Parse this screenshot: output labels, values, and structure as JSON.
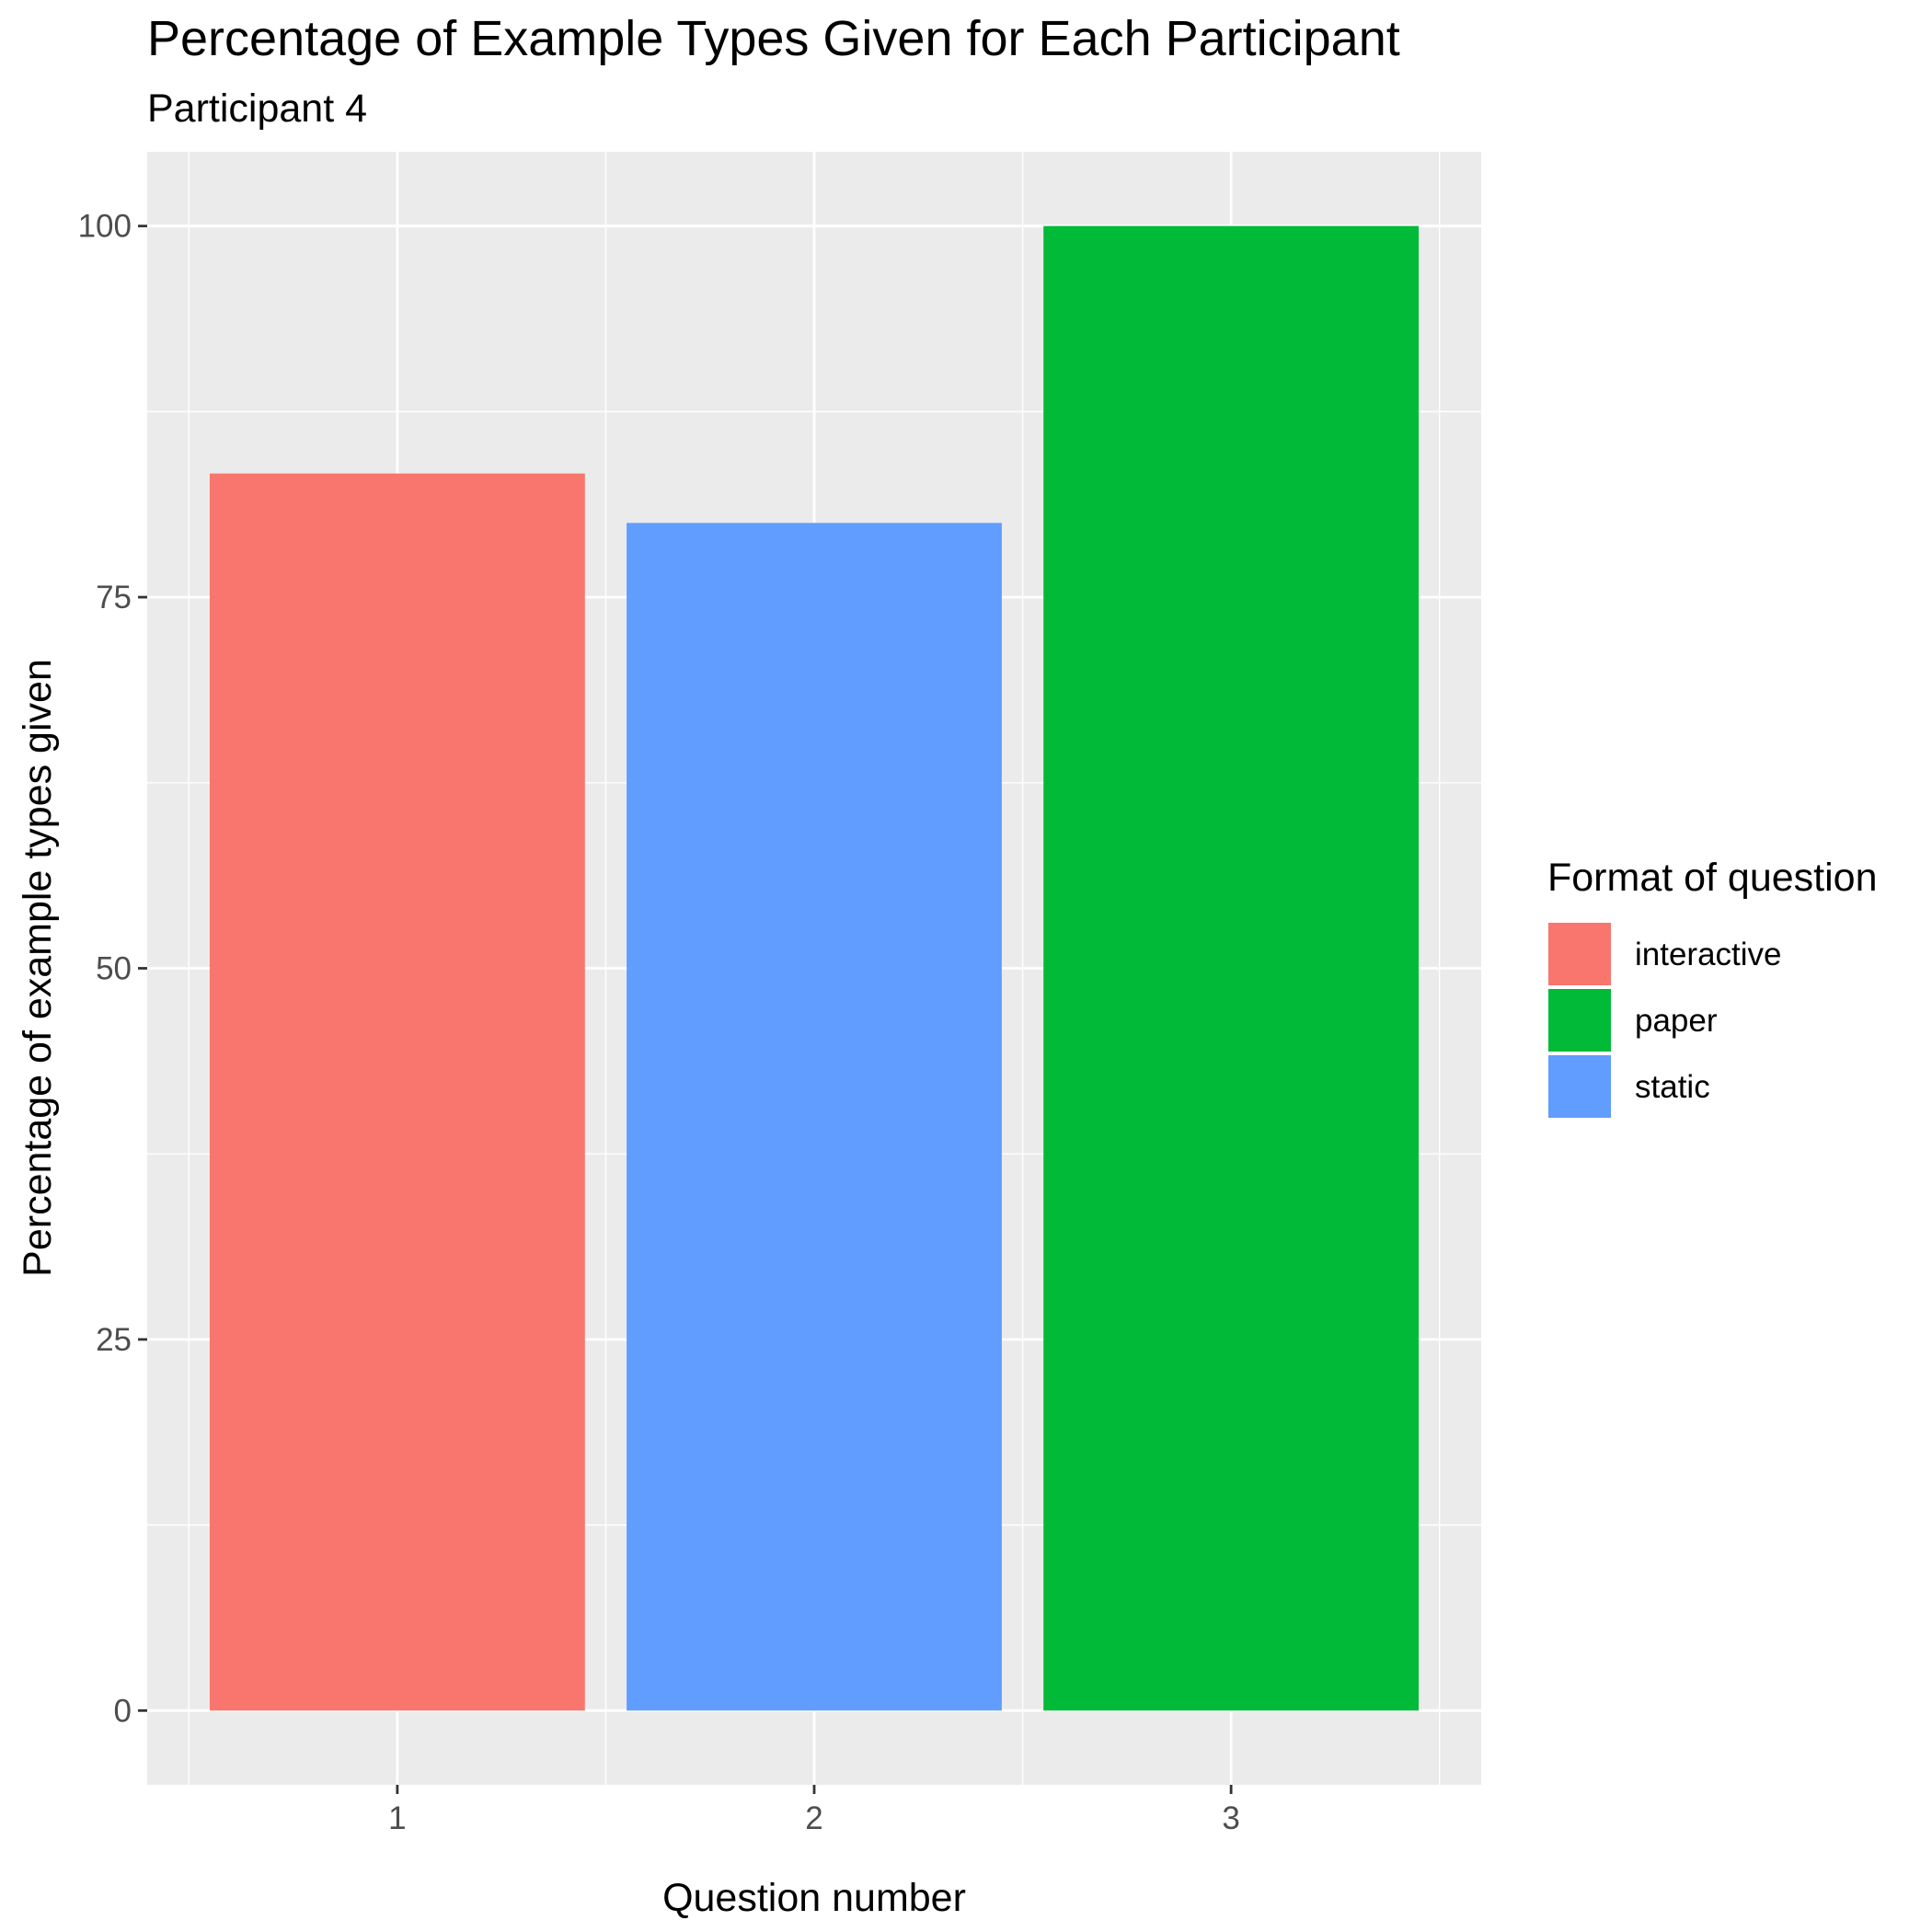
{
  "chart_data": {
    "type": "bar",
    "title": "Percentage of Example Types Given for Each Participant",
    "subtitle": "Participant 4",
    "xlabel": "Question number",
    "ylabel": "Percentage of example types given",
    "categories": [
      "1",
      "2",
      "3"
    ],
    "values": [
      83.33,
      80,
      100
    ],
    "bar_formats": [
      "interactive",
      "static",
      "paper"
    ],
    "ylim": [
      -5,
      105
    ],
    "yticks": [
      0,
      25,
      50,
      75,
      100
    ],
    "ytick_labels": [
      "0",
      "25",
      "50",
      "75",
      "100"
    ],
    "grid": true,
    "legend": {
      "title": "Format of question",
      "placement": "right",
      "entries": [
        {
          "label": "interactive",
          "color": "#F8766D"
        },
        {
          "label": "paper",
          "color": "#00BA38"
        },
        {
          "label": "static",
          "color": "#619CFF"
        }
      ]
    }
  },
  "colors": {
    "panel_background": "#EBEBEB",
    "grid_line": "#FFFFFF",
    "interactive": "#F8766D",
    "paper": "#00BA38",
    "static": "#619CFF"
  }
}
